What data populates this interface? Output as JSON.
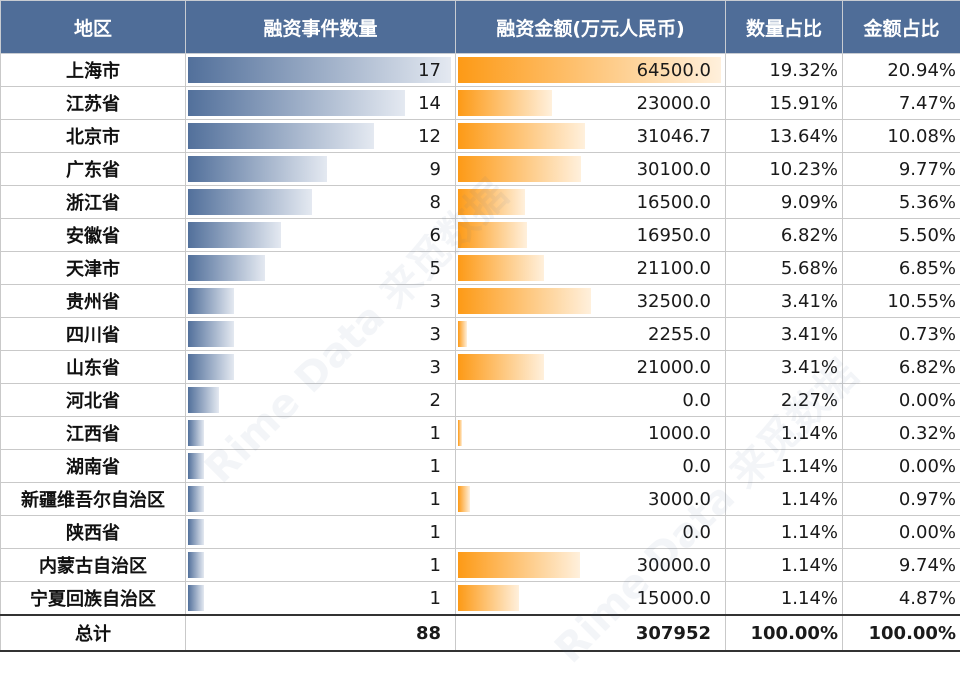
{
  "table": {
    "headers": [
      "地区",
      "融资事件数量",
      "融资金额(万元人民币)",
      "数量占比",
      "金额占比"
    ],
    "rows": [
      {
        "region": "上海市",
        "count": "17",
        "amount": "64500.0",
        "count_pct": "19.32%",
        "amount_pct": "20.94%",
        "count_bar": 100,
        "amount_bar": 100
      },
      {
        "region": "江苏省",
        "count": "14",
        "amount": "23000.0",
        "count_pct": "15.91%",
        "amount_pct": "7.47%",
        "count_bar": 82.4,
        "amount_bar": 35.7
      },
      {
        "region": "北京市",
        "count": "12",
        "amount": "31046.7",
        "count_pct": "13.64%",
        "amount_pct": "10.08%",
        "count_bar": 70.6,
        "amount_bar": 48.1
      },
      {
        "region": "广东省",
        "count": "9",
        "amount": "30100.0",
        "count_pct": "10.23%",
        "amount_pct": "9.77%",
        "count_bar": 52.9,
        "amount_bar": 46.7
      },
      {
        "region": "浙江省",
        "count": "8",
        "amount": "16500.0",
        "count_pct": "9.09%",
        "amount_pct": "5.36%",
        "count_bar": 47.1,
        "amount_bar": 25.6
      },
      {
        "region": "安徽省",
        "count": "6",
        "amount": "16950.0",
        "count_pct": "6.82%",
        "amount_pct": "5.50%",
        "count_bar": 35.3,
        "amount_bar": 26.3
      },
      {
        "region": "天津市",
        "count": "5",
        "amount": "21100.0",
        "count_pct": "5.68%",
        "amount_pct": "6.85%",
        "count_bar": 29.4,
        "amount_bar": 32.7
      },
      {
        "region": "贵州省",
        "count": "3",
        "amount": "32500.0",
        "count_pct": "3.41%",
        "amount_pct": "10.55%",
        "count_bar": 17.6,
        "amount_bar": 50.4
      },
      {
        "region": "四川省",
        "count": "3",
        "amount": "2255.0",
        "count_pct": "3.41%",
        "amount_pct": "0.73%",
        "count_bar": 17.6,
        "amount_bar": 3.5
      },
      {
        "region": "山东省",
        "count": "3",
        "amount": "21000.0",
        "count_pct": "3.41%",
        "amount_pct": "6.82%",
        "count_bar": 17.6,
        "amount_bar": 32.6
      },
      {
        "region": "河北省",
        "count": "2",
        "amount": "0.0",
        "count_pct": "2.27%",
        "amount_pct": "0.00%",
        "count_bar": 11.8,
        "amount_bar": 0
      },
      {
        "region": "江西省",
        "count": "1",
        "amount": "1000.0",
        "count_pct": "1.14%",
        "amount_pct": "0.32%",
        "count_bar": 5.9,
        "amount_bar": 1.6
      },
      {
        "region": "湖南省",
        "count": "1",
        "amount": "0.0",
        "count_pct": "1.14%",
        "amount_pct": "0.00%",
        "count_bar": 5.9,
        "amount_bar": 0
      },
      {
        "region": "新疆维吾尔自治区",
        "count": "1",
        "amount": "3000.0",
        "count_pct": "1.14%",
        "amount_pct": "0.97%",
        "count_bar": 5.9,
        "amount_bar": 4.7
      },
      {
        "region": "陕西省",
        "count": "1",
        "amount": "0.0",
        "count_pct": "1.14%",
        "amount_pct": "0.00%",
        "count_bar": 5.9,
        "amount_bar": 0
      },
      {
        "region": "内蒙古自治区",
        "count": "1",
        "amount": "30000.0",
        "count_pct": "1.14%",
        "amount_pct": "9.74%",
        "count_bar": 5.9,
        "amount_bar": 46.5
      },
      {
        "region": "宁夏回族自治区",
        "count": "1",
        "amount": "15000.0",
        "count_pct": "1.14%",
        "amount_pct": "4.87%",
        "count_bar": 5.9,
        "amount_bar": 23.3
      }
    ],
    "total": {
      "region": "总计",
      "count": "88",
      "amount": "307952",
      "count_pct": "100.00%",
      "amount_pct": "100.00%"
    }
  },
  "colors": {
    "header_bg": "#4f6d98",
    "count_bar": "#52709b",
    "amount_bar": "#fd9a16"
  },
  "watermark": "Rime Data 来觅数据"
}
